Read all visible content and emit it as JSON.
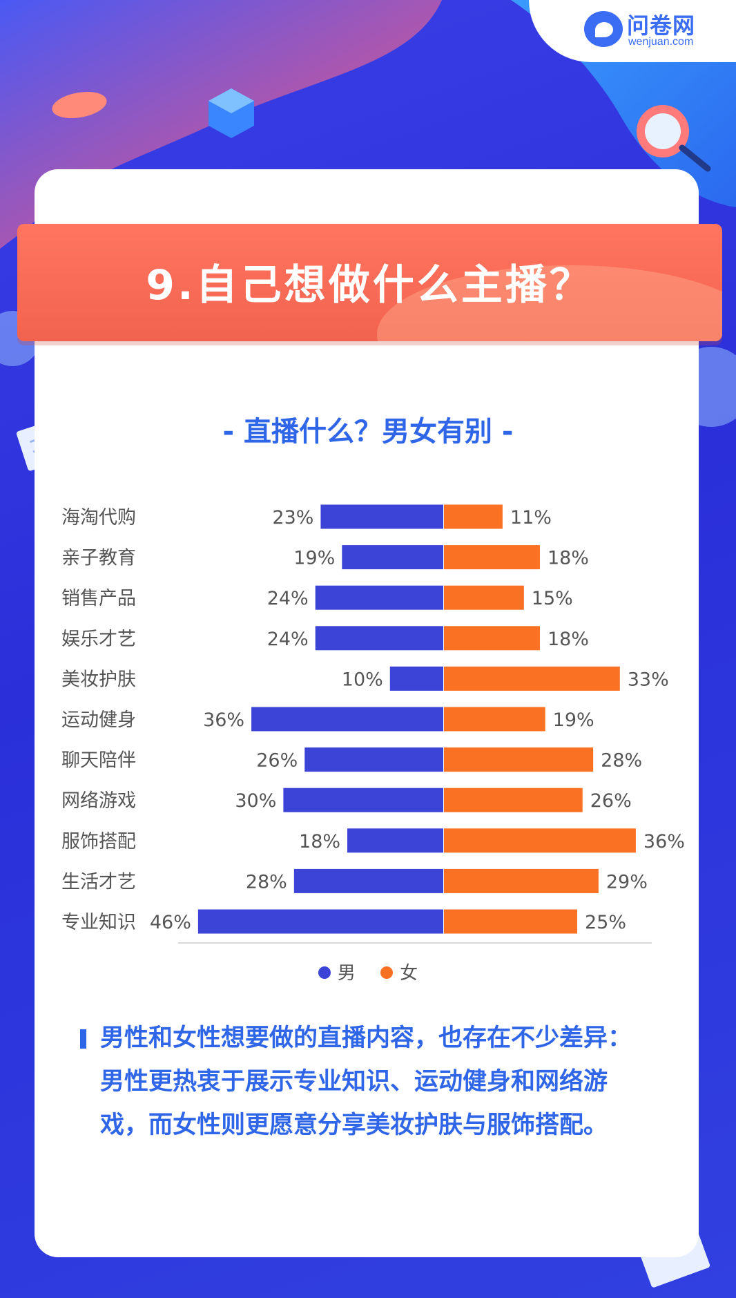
{
  "logo": {
    "name_cn": "问卷网",
    "name_en": "wenjuan.com"
  },
  "banner": {
    "title": "9.自己想做什么主播？"
  },
  "subtitle": "- 直播什么？男女有别 -",
  "colors": {
    "male": "#3c44d8",
    "female": "#fb7124",
    "accent": "#2f66e8",
    "banner": "#f6654f"
  },
  "chart_data": {
    "type": "bar",
    "orientation": "horizontal-diverging",
    "categories": [
      "海淘代购",
      "亲子教育",
      "销售产品",
      "娱乐才艺",
      "美妆护肤",
      "运动健身",
      "聊天陪伴",
      "网络游戏",
      "服饰搭配",
      "生活才艺",
      "专业知识"
    ],
    "series": [
      {
        "name": "男",
        "values": [
          23,
          19,
          24,
          24,
          10,
          36,
          26,
          30,
          18,
          28,
          46
        ]
      },
      {
        "name": "女",
        "values": [
          11,
          18,
          15,
          18,
          33,
          19,
          28,
          26,
          36,
          29,
          25
        ]
      }
    ],
    "value_unit": "%",
    "legend_position": "bottom-center",
    "grid": false
  },
  "note": "男性和女性想要做的直播内容，也存在不少差异：男性更热衷于展示专业知识、运动健身和网络游戏，而女性则更愿意分享美妆护肤与服饰搭配。"
}
